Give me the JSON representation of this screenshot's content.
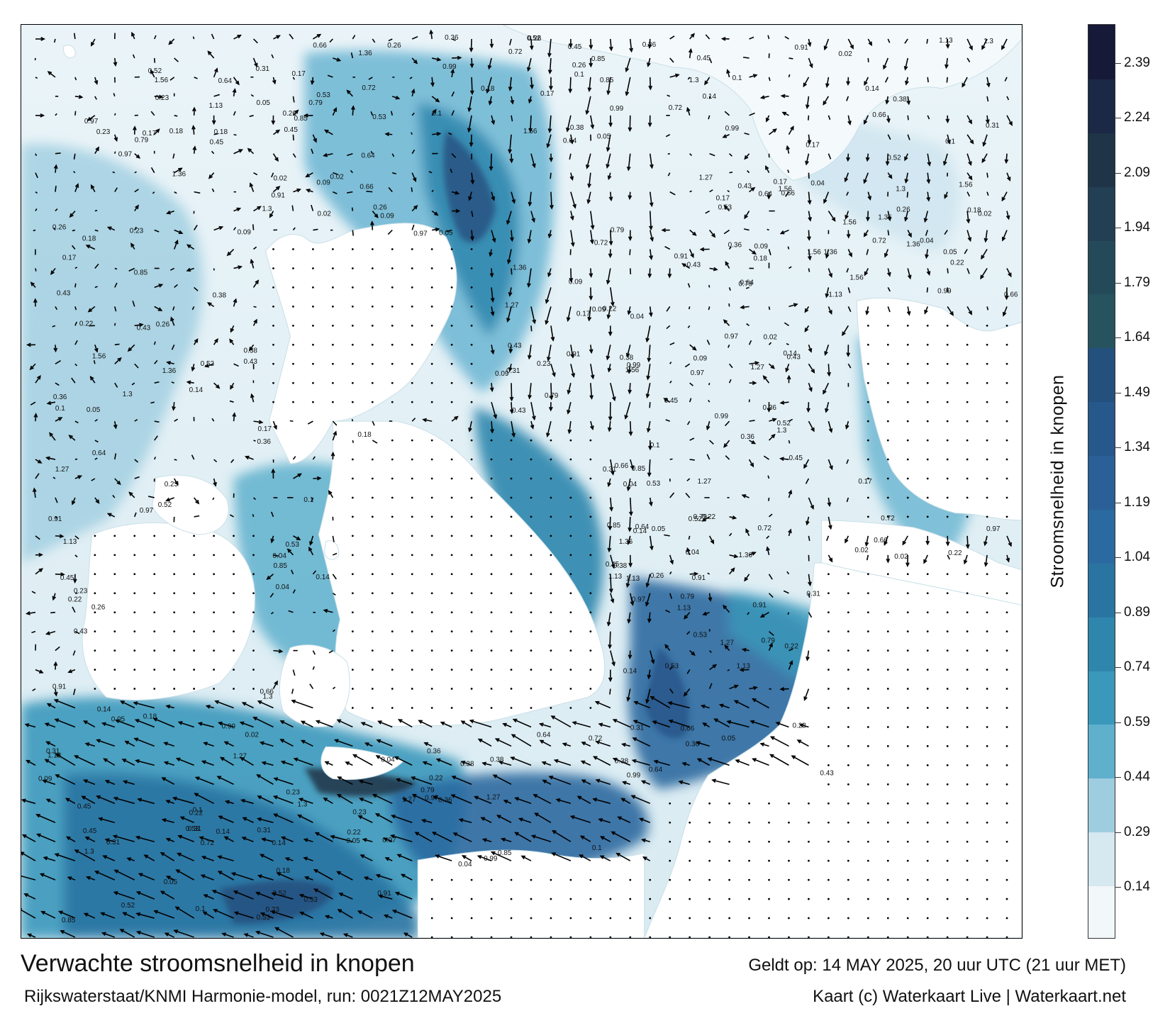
{
  "title": "Verwachte stroomsnelheid in knopen",
  "valid_time": "Geldt op: 14 MAY 2025, 20 uur UTC (21 uur MET)",
  "model_run": "Rijkswaterstaat/KNMI Harmonie-model, run: 0021Z12MAY2025",
  "credit": "Kaart (c) Waterkaart Live | Waterkaart.net",
  "colorbar": {
    "title": "Stroomsnelheid in knopen",
    "ticks": [
      "0.14",
      "0.29",
      "0.44",
      "0.59",
      "0.74",
      "0.89",
      "1.04",
      "1.19",
      "1.34",
      "1.49",
      "1.64",
      "1.79",
      "1.94",
      "2.09",
      "2.24",
      "2.39"
    ],
    "colors": [
      "#f2f7fa",
      "#d6e8f0",
      "#9fcde0",
      "#5fb0cd",
      "#3a98bb",
      "#2f86ad",
      "#2a74a2",
      "#2b6aa0",
      "#2a5f98",
      "#27588c",
      "#24507e",
      "#27535f",
      "#244a5a",
      "#223f54",
      "#1f3447",
      "#1b2846",
      "#161a38"
    ]
  },
  "map": {
    "land_color": "#ffffff",
    "arrow_color": "#000000",
    "sample_labels": [
      "0.05",
      "0.23",
      "0.31",
      "0.45",
      "0.97",
      "0.53",
      "0.43",
      "0.36",
      "0.17",
      "0.14",
      "0.26",
      "0.1",
      "0.22",
      "0.79",
      "0.85",
      "1.27",
      "0.99",
      "1.36",
      "1.56",
      "0.64",
      "0.72",
      "0.66",
      "0.52",
      "0.18",
      "0.04",
      "0.09",
      "1.13",
      "0.91",
      "1.3",
      "0.38",
      "0.02"
    ]
  }
}
